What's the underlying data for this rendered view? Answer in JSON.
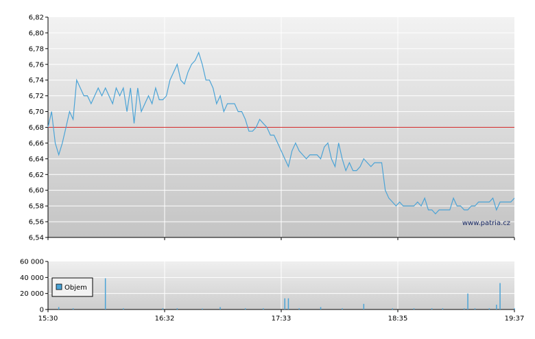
{
  "chart_data": [
    {
      "type": "line",
      "title": "",
      "xlabel": "",
      "ylabel": "",
      "x_tick_labels": [
        "15:30",
        "16:32",
        "17:33",
        "18:35",
        "19:37"
      ],
      "y_tick_labels": [
        "6,82",
        "6,80",
        "6,78",
        "6,76",
        "6,74",
        "6,72",
        "6,70",
        "6,68",
        "6,66",
        "6,64",
        "6,62",
        "6,60",
        "6,58",
        "6,56",
        "6,54"
      ],
      "ylim": [
        6.54,
        6.82
      ],
      "xlim": [
        "15:30",
        "19:37"
      ],
      "grid": true,
      "reference_line": {
        "value": 6.68,
        "color": "#d42a2a"
      },
      "watermark": "www.patria.cz",
      "line_color": "#4aa3d6",
      "series": [
        {
          "values": [
            [
              0,
              6.68
            ],
            [
              1,
              6.7
            ],
            [
              2,
              6.66
            ],
            [
              3,
              6.645
            ],
            [
              4,
              6.66
            ],
            [
              5,
              6.68
            ],
            [
              6,
              6.7
            ],
            [
              7,
              6.69
            ],
            [
              8,
              6.74
            ],
            [
              9,
              6.73
            ],
            [
              10,
              6.72
            ],
            [
              11,
              6.72
            ],
            [
              12,
              6.71
            ],
            [
              13,
              6.72
            ],
            [
              14,
              6.73
            ],
            [
              15,
              6.72
            ],
            [
              16,
              6.73
            ],
            [
              17,
              6.72
            ],
            [
              18,
              6.71
            ],
            [
              19,
              6.73
            ],
            [
              20,
              6.72
            ],
            [
              21,
              6.73
            ],
            [
              22,
              6.7
            ],
            [
              23,
              6.73
            ],
            [
              24,
              6.685
            ],
            [
              25,
              6.73
            ],
            [
              26,
              6.7
            ],
            [
              27,
              6.71
            ],
            [
              28,
              6.72
            ],
            [
              29,
              6.71
            ],
            [
              30,
              6.73
            ],
            [
              31,
              6.715
            ],
            [
              32,
              6.715
            ],
            [
              33,
              6.72
            ],
            [
              34,
              6.74
            ],
            [
              35,
              6.75
            ],
            [
              36,
              6.76
            ],
            [
              37,
              6.74
            ],
            [
              38,
              6.735
            ],
            [
              39,
              6.75
            ],
            [
              40,
              6.76
            ],
            [
              41,
              6.765
            ],
            [
              42,
              6.775
            ],
            [
              43,
              6.76
            ],
            [
              44,
              6.74
            ],
            [
              45,
              6.74
            ],
            [
              46,
              6.73
            ],
            [
              47,
              6.71
            ],
            [
              48,
              6.72
            ],
            [
              49,
              6.7
            ],
            [
              50,
              6.71
            ],
            [
              51,
              6.71
            ],
            [
              52,
              6.71
            ],
            [
              53,
              6.7
            ],
            [
              54,
              6.7
            ],
            [
              55,
              6.69
            ],
            [
              56,
              6.675
            ],
            [
              57,
              6.675
            ],
            [
              58,
              6.68
            ],
            [
              59,
              6.69
            ],
            [
              60,
              6.685
            ],
            [
              61,
              6.68
            ],
            [
              62,
              6.67
            ],
            [
              63,
              6.67
            ],
            [
              64,
              6.66
            ],
            [
              65,
              6.65
            ],
            [
              66,
              6.64
            ],
            [
              67,
              6.63
            ],
            [
              68,
              6.65
            ],
            [
              69,
              6.66
            ],
            [
              70,
              6.65
            ],
            [
              71,
              6.645
            ],
            [
              72,
              6.64
            ],
            [
              73,
              6.645
            ],
            [
              74,
              6.645
            ],
            [
              75,
              6.645
            ],
            [
              76,
              6.64
            ],
            [
              77,
              6.655
            ],
            [
              78,
              6.66
            ],
            [
              79,
              6.64
            ],
            [
              80,
              6.63
            ],
            [
              81,
              6.66
            ],
            [
              82,
              6.64
            ],
            [
              83,
              6.625
            ],
            [
              84,
              6.635
            ],
            [
              85,
              6.625
            ],
            [
              86,
              6.625
            ],
            [
              87,
              6.63
            ],
            [
              88,
              6.64
            ],
            [
              89,
              6.635
            ],
            [
              90,
              6.63
            ],
            [
              91,
              6.635
            ],
            [
              92,
              6.635
            ],
            [
              93,
              6.635
            ],
            [
              94,
              6.6
            ],
            [
              95,
              6.59
            ],
            [
              96,
              6.585
            ],
            [
              97,
              6.58
            ],
            [
              98,
              6.585
            ],
            [
              99,
              6.58
            ],
            [
              100,
              6.58
            ],
            [
              101,
              6.58
            ],
            [
              102,
              6.58
            ],
            [
              103,
              6.585
            ],
            [
              104,
              6.58
            ],
            [
              105,
              6.59
            ],
            [
              106,
              6.575
            ],
            [
              107,
              6.575
            ],
            [
              108,
              6.57
            ],
            [
              109,
              6.575
            ],
            [
              110,
              6.575
            ],
            [
              111,
              6.575
            ],
            [
              112,
              6.575
            ],
            [
              113,
              6.59
            ],
            [
              114,
              6.58
            ],
            [
              115,
              6.58
            ],
            [
              116,
              6.575
            ],
            [
              117,
              6.575
            ],
            [
              118,
              6.58
            ],
            [
              119,
              6.58
            ],
            [
              120,
              6.585
            ],
            [
              121,
              6.585
            ],
            [
              122,
              6.585
            ],
            [
              123,
              6.585
            ],
            [
              124,
              6.59
            ],
            [
              125,
              6.575
            ],
            [
              126,
              6.585
            ],
            [
              127,
              6.585
            ],
            [
              128,
              6.585
            ],
            [
              129,
              6.585
            ],
            [
              130,
              6.59
            ]
          ]
        }
      ]
    },
    {
      "type": "bar",
      "title": "",
      "xlabel": "",
      "ylabel": "",
      "x_tick_labels": [
        "15:30",
        "16:32",
        "17:33",
        "18:35",
        "19:37"
      ],
      "y_tick_labels": [
        "60 000",
        "40 000",
        "20 000",
        "0"
      ],
      "ylim": [
        0,
        60000
      ],
      "grid": true,
      "legend": {
        "label": "Objem",
        "placement": "top-left"
      },
      "bar_color": "#4aa3d6",
      "x_index_range": [
        0,
        130
      ],
      "values": [
        [
          3,
          3000
        ],
        [
          7,
          1500
        ],
        [
          16,
          39000
        ],
        [
          21,
          1500
        ],
        [
          32,
          1500
        ],
        [
          36,
          1500
        ],
        [
          43,
          1200
        ],
        [
          48,
          3000
        ],
        [
          55,
          1500
        ],
        [
          60,
          1500
        ],
        [
          66,
          14000
        ],
        [
          67,
          14000
        ],
        [
          70,
          1500
        ],
        [
          76,
          3000
        ],
        [
          82,
          1500
        ],
        [
          88,
          7000
        ],
        [
          96,
          1500
        ],
        [
          102,
          1500
        ],
        [
          107,
          1500
        ],
        [
          110,
          1500
        ],
        [
          116,
          1500
        ],
        [
          117,
          20000
        ],
        [
          119,
          1500
        ],
        [
          123,
          1500
        ],
        [
          125,
          6000
        ],
        [
          126,
          33000
        ],
        [
          130,
          1500
        ]
      ]
    }
  ]
}
